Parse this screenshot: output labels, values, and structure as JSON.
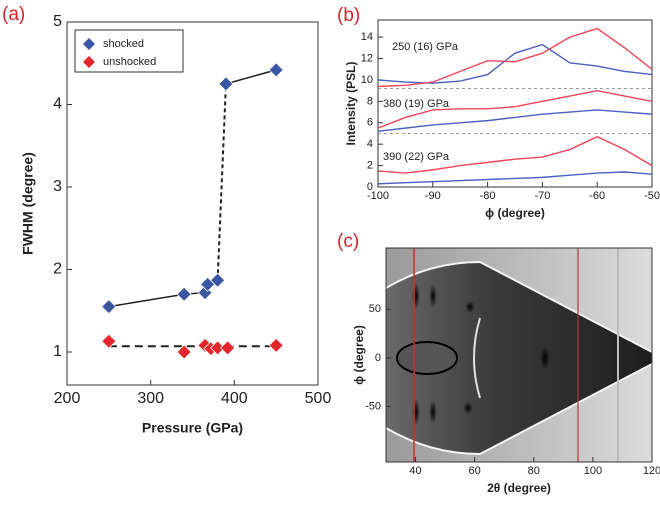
{
  "chart_data": [
    {
      "type": "line",
      "panel_label": "(a)",
      "x_label": "Pressure (GPa)",
      "y_label": "FWHM (degree)",
      "xlim": [
        200,
        500
      ],
      "xticks": [
        200,
        300,
        400,
        500
      ],
      "ylim": [
        0.6,
        5
      ],
      "yticks": [
        1,
        2,
        3,
        4,
        5
      ],
      "legend": "upper left",
      "series": [
        {
          "name": "shocked",
          "color": "#3b56a3",
          "x": [
            250,
            340,
            365,
            368,
            380,
            390,
            450
          ],
          "values": [
            1.55,
            1.7,
            1.72,
            1.82,
            1.87,
            4.25,
            4.42
          ],
          "dashed_segments": [
            4
          ]
        },
        {
          "name": "unshocked",
          "color": "#e3262b",
          "x": [
            250,
            340,
            365,
            372,
            380,
            392,
            450
          ],
          "values": [
            1.13,
            1.0,
            1.08,
            1.04,
            1.05,
            1.05,
            1.08
          ],
          "fit": 1.07
        }
      ]
    },
    {
      "type": "line",
      "panel_label": "(b)",
      "x_label": "ϕ (degree)",
      "y_label": "Intensity (PSL)",
      "xlim": [
        -100,
        -50
      ],
      "xticks": [
        -100,
        -90,
        -80,
        -70,
        -60,
        -50
      ],
      "ylim": [
        0,
        15.6
      ],
      "yticks": [
        0,
        2,
        4,
        6,
        8,
        10,
        12,
        14
      ],
      "x": [
        -100,
        -95,
        -90,
        -85,
        -80,
        -75,
        -70,
        -65,
        -60,
        -55,
        -50
      ],
      "annotations": [
        "250 (16) GPa",
        "380 (19)  GPa",
        "390 (22) GPa"
      ],
      "hlines": [
        9.2,
        5.0
      ],
      "series": [
        {
          "color": "#4a5fc0",
          "values": [
            10,
            9.8,
            9.7,
            9.9,
            10.5,
            12.5,
            13.3,
            11.6,
            11.3,
            10.8,
            10.5
          ]
        },
        {
          "color": "#f0455a",
          "values": [
            9.4,
            9.5,
            9.8,
            10.8,
            11.8,
            11.7,
            12.5,
            14,
            14.8,
            13,
            11
          ]
        },
        {
          "color": "#f0455a",
          "values": [
            5.5,
            6.5,
            7.2,
            7.3,
            7.3,
            7.5,
            8,
            8.5,
            9,
            8.5,
            8
          ]
        },
        {
          "color": "#4a5fc0",
          "values": [
            5.2,
            5.5,
            5.8,
            6,
            6.2,
            6.5,
            6.8,
            7,
            7.2,
            7,
            6.8
          ]
        },
        {
          "color": "#f0455a",
          "values": [
            1.5,
            1.3,
            1.6,
            2,
            2.3,
            2.6,
            2.8,
            3.5,
            4.7,
            3.5,
            2
          ]
        },
        {
          "color": "#4a5fc0",
          "values": [
            0.3,
            0.4,
            0.5,
            0.6,
            0.7,
            0.8,
            0.9,
            1.1,
            1.3,
            1.4,
            1.2
          ]
        }
      ]
    },
    {
      "type": "image",
      "panel_label": "(c)",
      "x_label": "2θ (degree)",
      "y_label": "ϕ (degree)",
      "xlim": [
        30,
        120
      ],
      "xticks": [
        40,
        60,
        80,
        100,
        120
      ],
      "ylim": [
        -107,
        113
      ],
      "yticks": [
        -50,
        0,
        50
      ]
    }
  ]
}
